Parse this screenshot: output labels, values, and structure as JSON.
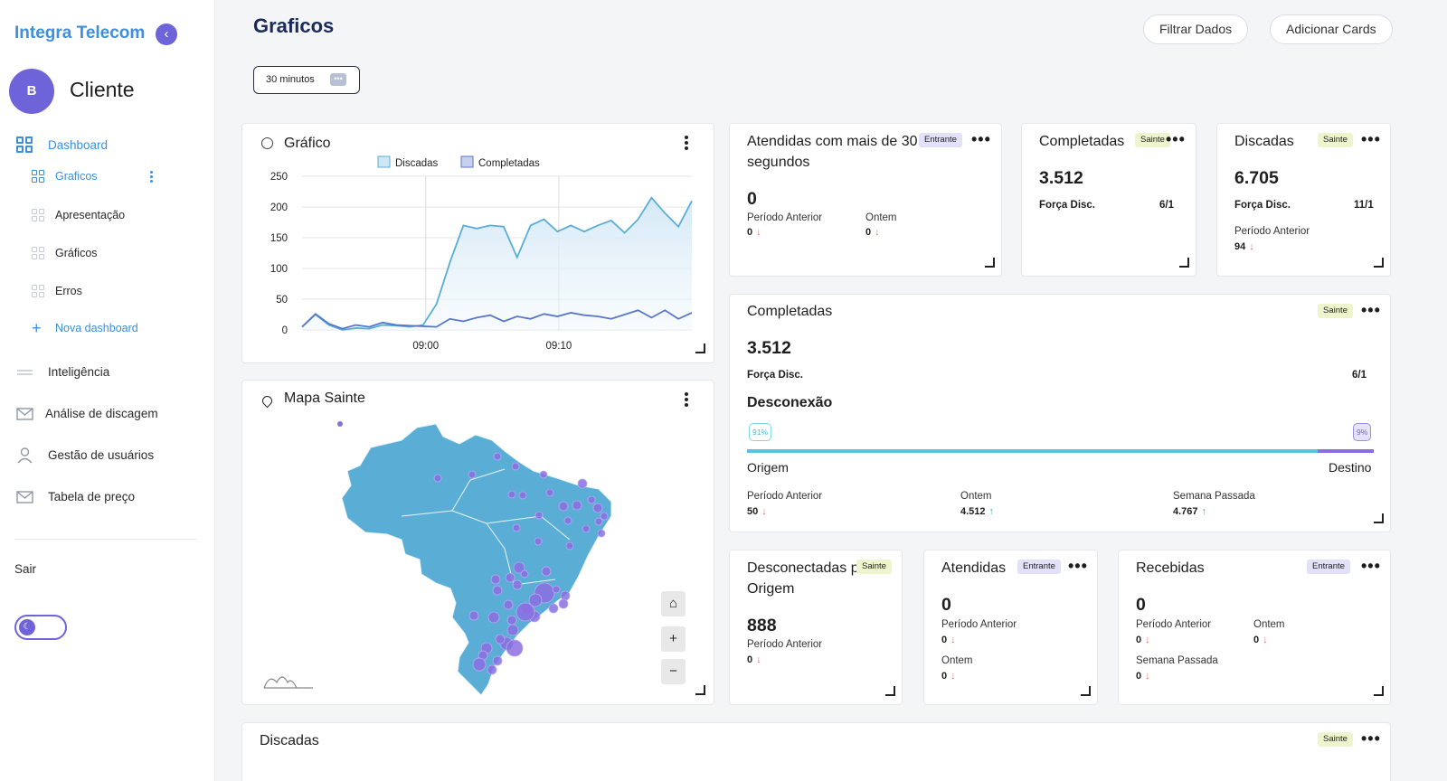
{
  "sidebar": {
    "brand": "Integra Telecom",
    "avatar_initial": "B",
    "user_name": "Cliente",
    "items": [
      {
        "label": "Dashboard"
      },
      {
        "label": "Graficos"
      },
      {
        "label": "Apresentação"
      },
      {
        "label": "Gráficos"
      },
      {
        "label": "Erros"
      },
      {
        "label": "Nova dashboard"
      },
      {
        "label": "Inteligência"
      },
      {
        "label": "Análise de discagem"
      },
      {
        "label": "Gestão de usuários"
      },
      {
        "label": "Tabela de preço"
      }
    ],
    "logout": "Sair"
  },
  "header": {
    "title": "Graficos",
    "filter_button": "Filtrar Dados",
    "add_cards_button": "Adicionar Cards",
    "time_selector": "30 minutos"
  },
  "chart_card": {
    "title": "Gráfico",
    "chart_data": {
      "type": "area",
      "title": "",
      "xlabel": "",
      "ylabel": "",
      "ylim": [
        0,
        250
      ],
      "yticks": [
        0,
        50,
        100,
        150,
        200,
        250
      ],
      "xtick_labels": [
        "09:00",
        "09:10"
      ],
      "legend_position": "top",
      "grid": true,
      "series": [
        {
          "name": "Discadas",
          "color": "#5aaed6",
          "values": [
            5,
            25,
            8,
            0,
            3,
            2,
            8,
            7,
            5,
            8,
            42,
            110,
            170,
            165,
            170,
            168,
            118,
            170,
            180,
            160,
            170,
            160,
            170,
            178,
            158,
            180,
            215,
            190,
            168,
            210
          ]
        },
        {
          "name": "Completadas",
          "color": "#5877c8",
          "values": [
            5,
            26,
            10,
            2,
            8,
            5,
            12,
            8,
            7,
            6,
            5,
            18,
            14,
            20,
            24,
            14,
            22,
            18,
            26,
            22,
            28,
            24,
            22,
            18,
            25,
            32,
            20,
            32,
            18,
            28
          ]
        }
      ]
    }
  },
  "map_card": {
    "title": "Mapa Sainte",
    "home_label": "⌂",
    "zoom_in": "+",
    "zoom_out": "−"
  },
  "cards": {
    "atendidas30": {
      "title": "Atendidas com mais de 30 segundos",
      "badge": "Entrante",
      "value": "0",
      "lbl1": "Período Anterior",
      "val1": "0",
      "lbl2": "Ontem",
      "val2": "0"
    },
    "completadas_small": {
      "title": "Completadas",
      "badge": "Sainte",
      "value": "3.512",
      "lbl": "Força Disc.",
      "ratio": "6/1"
    },
    "discadas_small": {
      "title": "Discadas",
      "badge": "Sainte",
      "value": "6.705",
      "lbl": "Força Disc.",
      "ratio": "11/1",
      "lbl2": "Período Anterior",
      "val2": "94"
    },
    "completadas_big": {
      "title": "Completadas",
      "badge": "Sainte",
      "value": "3.512",
      "lbl": "Força Disc.",
      "ratio": "6/1",
      "section": "Desconexão",
      "pct_origin": "91%",
      "pct_dest": "9%",
      "origin_fraction": 0.91,
      "origin_label": "Origem",
      "dest_label": "Destino",
      "p1_lbl": "Período Anterior",
      "p1_val": "50",
      "p2_lbl": "Ontem",
      "p2_val": "4.512",
      "p3_lbl": "Semana Passada",
      "p3_val": "4.767"
    },
    "desconectadas": {
      "title": "Desconectadas pela Origem",
      "badge": "Sainte",
      "value": "888",
      "lbl": "Período Anterior",
      "val": "0"
    },
    "atendidas": {
      "title": "Atendidas",
      "badge": "Entrante",
      "value": "0",
      "lbl1": "Período Anterior",
      "val1": "0",
      "lbl2": "Ontem",
      "val2": "0"
    },
    "recebidas": {
      "title": "Recebidas",
      "badge": "Entrante",
      "value": "0",
      "lbl1": "Período Anterior",
      "val1": "0",
      "lbl2": "Ontem",
      "val2": "0",
      "lbl3": "Semana Passada",
      "val3": "0"
    },
    "discadas_bottom": {
      "title": "Discadas",
      "badge": "Sainte"
    }
  },
  "colors": {
    "accent": "#6f63d9",
    "brand": "#3f8fe0",
    "map_fill": "#5aaed6",
    "map_points": "#8a6ee0"
  }
}
